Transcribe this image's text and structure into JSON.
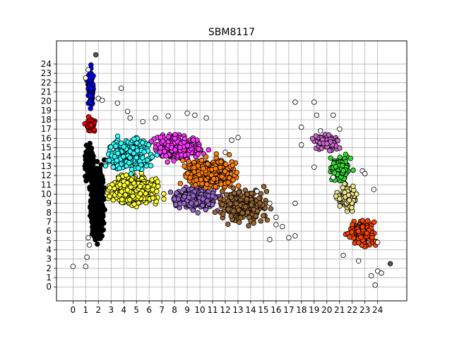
{
  "chart_data": {
    "type": "scatter",
    "title": "SBM8117",
    "xlabel": "",
    "ylabel": "",
    "xlim": [
      -1.3,
      26.3
    ],
    "ylim": [
      -1.5,
      26.5
    ],
    "x_ticks": [
      0,
      1,
      2,
      3,
      4,
      5,
      6,
      7,
      8,
      9,
      10,
      11,
      12,
      13,
      14,
      15,
      16,
      17,
      18,
      19,
      20,
      21,
      22,
      23,
      24
    ],
    "y_ticks": [
      0,
      1,
      2,
      3,
      4,
      5,
      6,
      7,
      8,
      9,
      10,
      11,
      12,
      13,
      14,
      15,
      16,
      17,
      18,
      19,
      20,
      21,
      22,
      23,
      24
    ],
    "grid": true,
    "legend": "none",
    "marker": "circle with black edge",
    "clusters": [
      {
        "color": "#000000",
        "center": [
          1.9,
          9.2
        ],
        "spread": [
          0.35,
          2.8
        ],
        "n": 900
      },
      {
        "color": "#000000",
        "center": [
          1.3,
          13.5
        ],
        "spread": [
          0.25,
          1.5
        ],
        "n": 120
      },
      {
        "color": "#0000ff",
        "center": [
          1.4,
          21.2
        ],
        "spread": [
          0.18,
          1.5
        ],
        "n": 110
      },
      {
        "color": "#ff0000",
        "center": [
          1.4,
          17.5
        ],
        "spread": [
          0.25,
          0.6
        ],
        "n": 60
      },
      {
        "color": "#ffff33",
        "center": [
          4.8,
          10.5
        ],
        "spread": [
          1.4,
          1.2
        ],
        "n": 450
      },
      {
        "color": "#33ffff",
        "center": [
          4.5,
          14.3
        ],
        "spread": [
          1.3,
          1.3
        ],
        "n": 300
      },
      {
        "color": "#ff33ff",
        "center": [
          8.3,
          15.0
        ],
        "spread": [
          1.5,
          1.1
        ],
        "n": 260
      },
      {
        "color": "#9966cc",
        "center": [
          9.5,
          9.6
        ],
        "spread": [
          1.3,
          0.9
        ],
        "n": 250
      },
      {
        "color": "#ff7f0e",
        "center": [
          10.8,
          12.3
        ],
        "spread": [
          1.6,
          1.2
        ],
        "n": 360
      },
      {
        "color": "#996633",
        "center": [
          13.5,
          8.6
        ],
        "spread": [
          1.4,
          1.3
        ],
        "n": 280
      },
      {
        "color": "#cc66cc",
        "center": [
          20.0,
          15.6
        ],
        "spread": [
          0.8,
          0.7
        ],
        "n": 80
      },
      {
        "color": "#33dd33",
        "center": [
          21.1,
          12.7
        ],
        "spread": [
          0.6,
          1.0
        ],
        "n": 120
      },
      {
        "color": "#f0e68c",
        "center": [
          21.6,
          9.6
        ],
        "spread": [
          0.6,
          1.0
        ],
        "n": 110
      },
      {
        "color": "#ff4500",
        "center": [
          22.8,
          5.8
        ],
        "spread": [
          0.8,
          1.1
        ],
        "n": 170
      }
    ],
    "outliers_white": [
      [
        0,
        2.2
      ],
      [
        1,
        2.2
      ],
      [
        1.1,
        3.2
      ],
      [
        1.3,
        4.5
      ],
      [
        1.2,
        5.3
      ],
      [
        1,
        22.5
      ],
      [
        1.2,
        23.4
      ],
      [
        2,
        20.3
      ],
      [
        2.3,
        20.1
      ],
      [
        3.5,
        19.8
      ],
      [
        3.8,
        21.4
      ],
      [
        4.3,
        18.9
      ],
      [
        4.5,
        18.2
      ],
      [
        5.5,
        17.8
      ],
      [
        6.5,
        18.2
      ],
      [
        7.5,
        18.4
      ],
      [
        9,
        18.7
      ],
      [
        9.6,
        18.5
      ],
      [
        10.5,
        18.2
      ],
      [
        12.5,
        15.8
      ],
      [
        13,
        16.1
      ],
      [
        12,
        14.5
      ],
      [
        14.5,
        10.3
      ],
      [
        15.5,
        9
      ],
      [
        16,
        7.5
      ],
      [
        16.5,
        6.5
      ],
      [
        17,
        5.3
      ],
      [
        17.5,
        5.5
      ],
      [
        15.5,
        5.1
      ],
      [
        16,
        6.7
      ],
      [
        17.5,
        9
      ],
      [
        18,
        15.3
      ],
      [
        18,
        17.2
      ],
      [
        17.5,
        19.9
      ],
      [
        19,
        19.9
      ],
      [
        19.2,
        18.5
      ],
      [
        19.5,
        16.8
      ],
      [
        19,
        12.9
      ],
      [
        20.5,
        11.8
      ],
      [
        20.5,
        18.5
      ],
      [
        21,
        17
      ],
      [
        23.5,
        1.2
      ],
      [
        23.8,
        0.2
      ],
      [
        24,
        1.7
      ],
      [
        24.3,
        1.5
      ],
      [
        23.7,
        10.5
      ],
      [
        22.8,
        12.5
      ],
      [
        22.5,
        2.8
      ],
      [
        21.3,
        3.4
      ],
      [
        24,
        4.8
      ],
      [
        23,
        12.2
      ]
    ],
    "outliers_gray": [
      [
        1.8,
        25.0
      ],
      [
        25.0,
        2.5
      ]
    ]
  }
}
